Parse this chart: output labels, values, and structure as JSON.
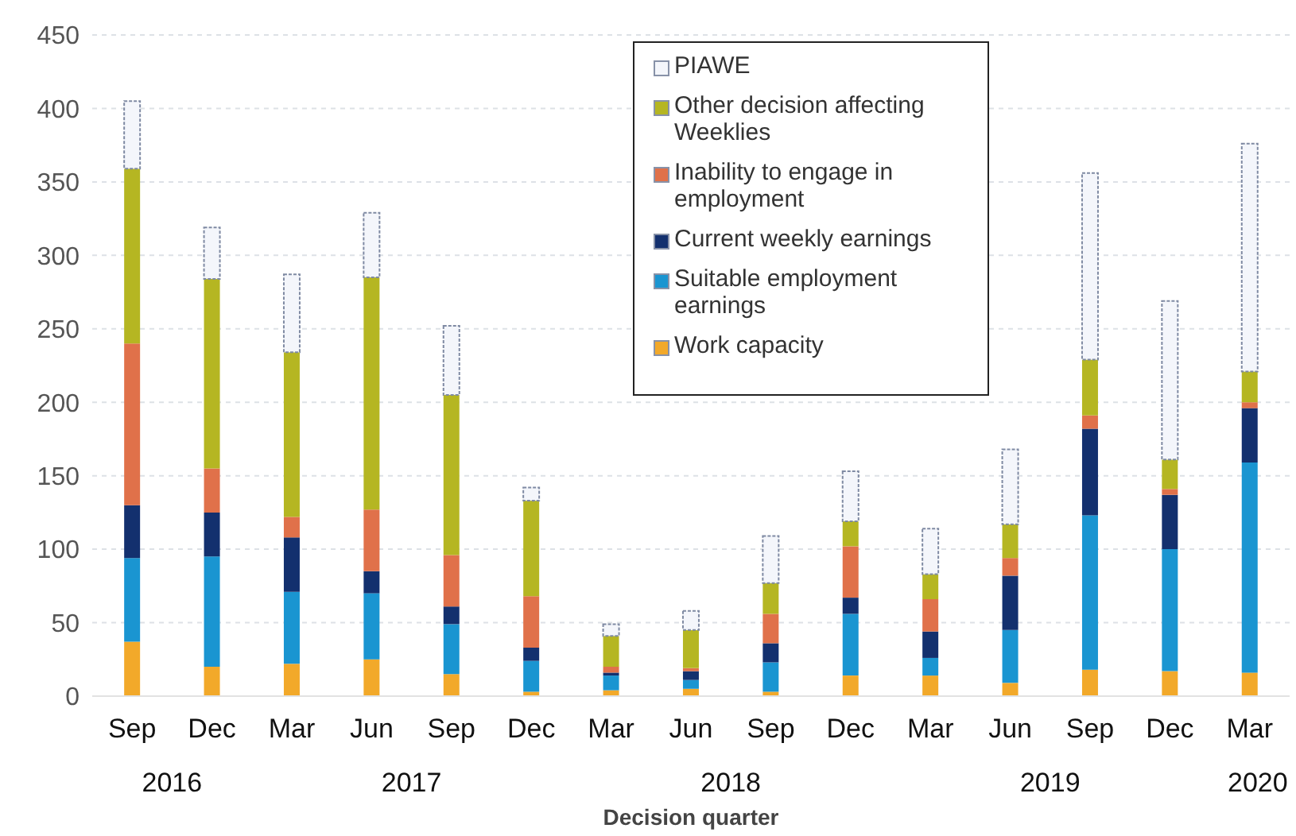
{
  "chart_data": {
    "type": "bar",
    "stacked": true,
    "xlabel": "Decision quarter",
    "categories": [
      "Sep",
      "Dec",
      "Mar",
      "Jun",
      "Sep",
      "Dec",
      "Mar",
      "Jun",
      "Sep",
      "Dec",
      "Mar",
      "Jun",
      "Sep",
      "Dec",
      "Mar"
    ],
    "series": [
      {
        "name": "Work capacity",
        "color": "#f2a92a",
        "values": [
          37,
          20,
          22,
          25,
          15,
          3,
          4,
          5,
          3,
          14,
          14,
          9,
          18,
          17,
          16
        ]
      },
      {
        "name": "Suitable employment earnings",
        "color": "#1a95d1",
        "values": [
          57,
          75,
          49,
          45,
          34,
          21,
          10,
          6,
          20,
          42,
          12,
          36,
          105,
          83,
          143
        ]
      },
      {
        "name": "Current weekly earnings",
        "color": "#13306e",
        "values": [
          36,
          30,
          37,
          15,
          12,
          9,
          2,
          6,
          13,
          11,
          18,
          37,
          59,
          37,
          37
        ]
      },
      {
        "name": "Inability to engage in employment",
        "color": "#e0714a",
        "values": [
          110,
          30,
          14,
          42,
          35,
          35,
          4,
          2,
          20,
          35,
          22,
          12,
          9,
          4,
          4
        ]
      },
      {
        "name": "Other decision affecting Weeklies",
        "color": "#b5b622",
        "values": [
          119,
          129,
          112,
          158,
          109,
          65,
          21,
          26,
          21,
          17,
          17,
          23,
          38,
          20,
          21
        ]
      },
      {
        "name": "PIAWE",
        "color": "#f4f6fb",
        "values": [
          46,
          35,
          53,
          44,
          47,
          9,
          8,
          13,
          32,
          34,
          31,
          51,
          127,
          108,
          155
        ]
      }
    ],
    "ylim": [
      0,
      450
    ],
    "yticks": [
      0,
      50,
      100,
      150,
      200,
      250,
      300,
      350,
      400,
      450
    ],
    "grid": "y",
    "legend": "top",
    "annotations": [
      "2016",
      "2017",
      "2018",
      "2019",
      "2020"
    ]
  }
}
